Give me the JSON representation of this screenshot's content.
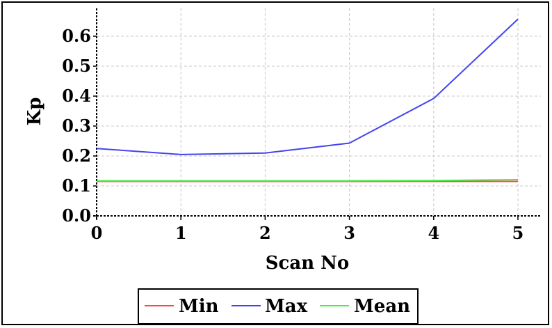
{
  "chart_data": {
    "type": "line",
    "xlabel": "Scan No",
    "ylabel": "Kp",
    "x": [
      0,
      1,
      2,
      3,
      4,
      5
    ],
    "xlim": [
      0,
      5.3
    ],
    "ylim": [
      0,
      0.68
    ],
    "xticks": [
      "0",
      "1",
      "2",
      "3",
      "4",
      "5"
    ],
    "yticks": [
      "0.0",
      "0.1",
      "0.2",
      "0.3",
      "0.4",
      "0.5",
      "0.6"
    ],
    "grid": true,
    "legend_position": "bottom",
    "series": [
      {
        "name": "Min",
        "color": "#ff4444",
        "values": [
          0.115,
          0.115,
          0.115,
          0.115,
          0.115,
          0.115
        ]
      },
      {
        "name": "Max",
        "color": "#4444ee",
        "values": [
          0.225,
          0.205,
          0.21,
          0.243,
          0.392,
          0.657
        ]
      },
      {
        "name": "Mean",
        "color": "#44ee44",
        "values": [
          0.117,
          0.117,
          0.117,
          0.117,
          0.118,
          0.121
        ]
      }
    ]
  }
}
